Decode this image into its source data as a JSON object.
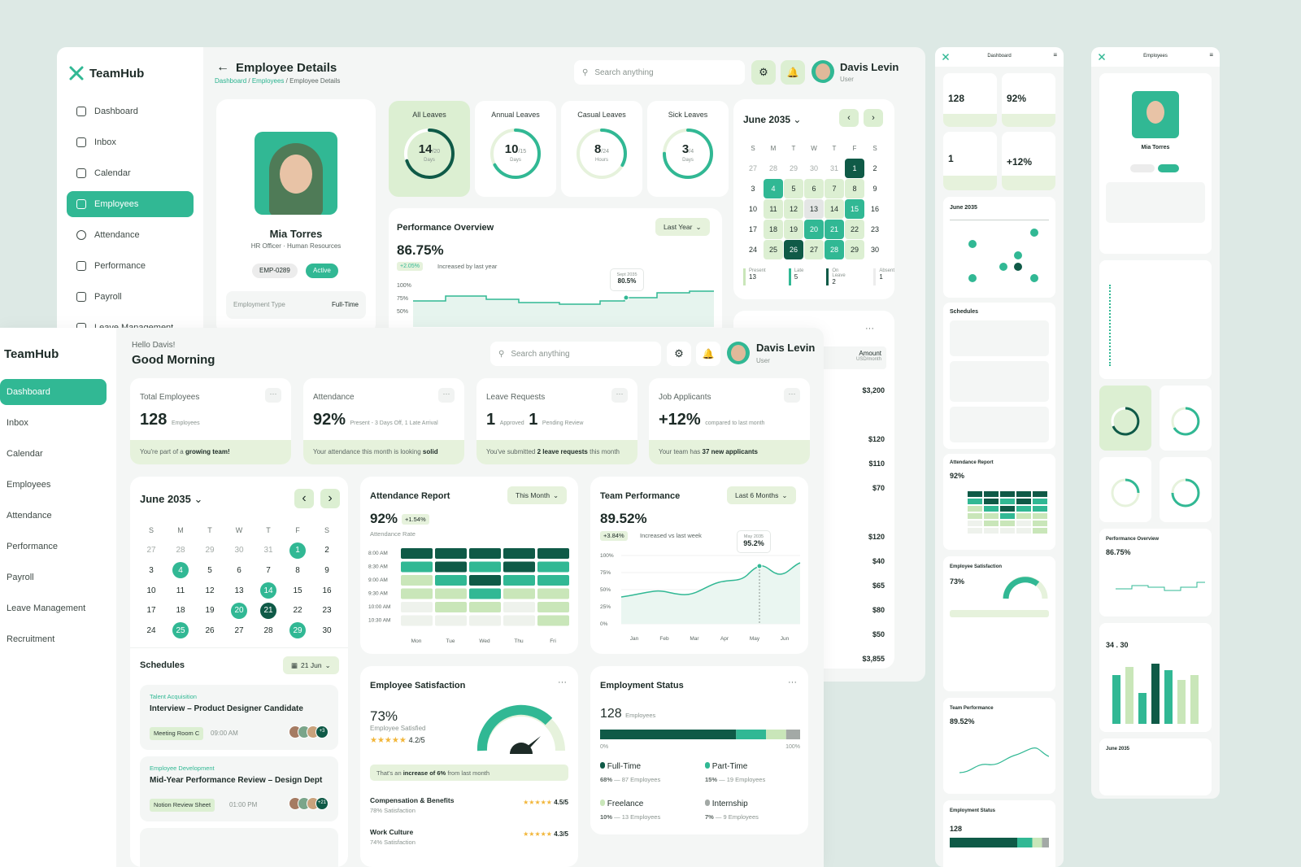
{
  "brand": {
    "name": "TeamHub",
    "accent": "#31b894",
    "dark": "#0f5a47",
    "light": "#dcefd2"
  },
  "back": {
    "nav": [
      "Dashboard",
      "Inbox",
      "Calendar",
      "Employees",
      "Attendance",
      "Performance",
      "Payroll",
      "Leave Management"
    ],
    "active_nav": "Employees",
    "title": "Employee Details",
    "breadcrumb": {
      "a": "Dashboard",
      "b": "Employees",
      "c": "Employee Details",
      "sep": "/"
    },
    "search_placeholder": "Search anything",
    "user": {
      "name": "Davis Levin",
      "role": "User"
    },
    "profile": {
      "name": "Mia Torres",
      "role": "HR Officer",
      "dept": "Human Resources",
      "id": "EMP-0289",
      "status": "Active",
      "emp_type_label": "Employment Type",
      "emp_type": "Full-Time"
    },
    "leaves": [
      {
        "title": "All Leaves",
        "num": "14",
        "den": "/20",
        "unit": "Days",
        "fraction": 0.7
      },
      {
        "title": "Annual Leaves",
        "num": "10",
        "den": "/15",
        "unit": "Days",
        "fraction": 0.67
      },
      {
        "title": "Casual Leaves",
        "num": "8",
        "den": "/24",
        "unit": "Hours",
        "fraction": 0.33
      },
      {
        "title": "Sick Leaves",
        "num": "3",
        "den": "/4",
        "unit": "Days",
        "fraction": 0.75
      }
    ],
    "performance": {
      "title": "Performance Overview",
      "filter": "Last Year",
      "value": "86.75%",
      "delta": "+2.05%",
      "delta_text": "Increased by last year",
      "tip_date": "Sept 2035",
      "tip_val": "80.5%",
      "yticks": [
        "100%",
        "75%",
        "50%"
      ]
    },
    "calendar": {
      "month": "June 2035",
      "days": [
        "S",
        "M",
        "T",
        "W",
        "T",
        "F",
        "S"
      ],
      "weeks": [
        [
          "27",
          "28",
          "29",
          "30",
          "31",
          "1",
          "2"
        ],
        [
          "3",
          "4",
          "5",
          "6",
          "7",
          "8",
          "9"
        ],
        [
          "10",
          "11",
          "12",
          "13",
          "14",
          "15",
          "16"
        ],
        [
          "17",
          "18",
          "19",
          "20",
          "21",
          "22",
          "23"
        ],
        [
          "24",
          "25",
          "26",
          "27",
          "28",
          "29",
          "30"
        ]
      ],
      "legend": [
        {
          "label": "Present",
          "value": "13"
        },
        {
          "label": "Late",
          "value": "5"
        },
        {
          "label": "On Leave",
          "value": "2"
        },
        {
          "label": "Absent",
          "value": "1"
        }
      ]
    },
    "payroll": {
      "col": "Amount",
      "col_sub": "USD/month",
      "amounts": [
        "$3,200",
        "$120",
        "$110",
        "$70",
        "$120",
        "$40",
        "$65",
        "$80",
        "$50",
        "$3,855"
      ]
    }
  },
  "front": {
    "nav": [
      "Dashboard",
      "Inbox",
      "Calendar",
      "Employees",
      "Attendance",
      "Performance",
      "Payroll",
      "Leave Management",
      "Recruitment"
    ],
    "greeting": "Hello Davis!",
    "headline": "Good Morning",
    "search_placeholder": "Search anything",
    "user": {
      "name": "Davis Levin",
      "role": "User"
    },
    "stats": [
      {
        "label": "Total Employees",
        "value": "128",
        "sub": "Employees",
        "foot_a": "You're part of a ",
        "foot_b": "growing team!",
        "foot_c": ""
      },
      {
        "label": "Attendance",
        "value": "92%",
        "sub": "Present  -  3 Days Off, 1 Late Arrival",
        "foot_a": "Your attendance this month is looking ",
        "foot_b": "solid",
        "foot_c": ""
      },
      {
        "label": "Leave Requests",
        "value": "1",
        "sub": "Approved",
        "value2": "1",
        "sub2": "Pending Review",
        "foot_a": "You've submitted ",
        "foot_b": "2 leave requests",
        "foot_c": " this month"
      },
      {
        "label": "Job Applicants",
        "value": "+12%",
        "sub": "compared to last month",
        "foot_a": "Your team has ",
        "foot_b": "37 new applicants",
        "foot_c": ""
      }
    ],
    "calendar": {
      "month": "June 2035",
      "days": [
        "S",
        "M",
        "T",
        "W",
        "T",
        "F",
        "S"
      ],
      "weeks": [
        [
          "27",
          "28",
          "29",
          "30",
          "31",
          "1",
          "2"
        ],
        [
          "3",
          "4",
          "5",
          "6",
          "7",
          "8",
          "9"
        ],
        [
          "10",
          "11",
          "12",
          "13",
          "14",
          "15",
          "16"
        ],
        [
          "17",
          "18",
          "19",
          "20",
          "21",
          "22",
          "23"
        ],
        [
          "24",
          "25",
          "26",
          "27",
          "28",
          "29",
          "30"
        ]
      ]
    },
    "schedules": {
      "title": "Schedules",
      "filter": "21 Jun",
      "items": [
        {
          "category": "Talent Acquisition",
          "title": "Interview – Product Designer Candidate",
          "tag": "Meeting Room C",
          "time": "09:00 AM",
          "more": "+3"
        },
        {
          "category": "Employee Development",
          "title": "Mid-Year Performance Review – Design Dept",
          "tag": "Notion Review Sheet",
          "time": "01:00 PM",
          "more": "+21"
        }
      ]
    },
    "attendance_report": {
      "title": "Attendance Report",
      "filter": "This Month",
      "value": "92%",
      "delta": "+1.54%",
      "sub": "Attendance Rate",
      "times": [
        "8:00 AM",
        "8:30 AM",
        "9:00 AM",
        "9:30 AM",
        "10:00 AM",
        "10:30 AM"
      ],
      "days": [
        "Mon",
        "Tue",
        "Wed",
        "Thu",
        "Fri"
      ]
    },
    "team_performance": {
      "title": "Team Performance",
      "filter": "Last 6 Months",
      "value": "89.52%",
      "delta": "+3.84%",
      "delta_text": "Increased vs last week",
      "tip_date": "May 2035",
      "tip_val": "95.2%",
      "yticks": [
        "100%",
        "75%",
        "50%",
        "25%",
        "0%"
      ],
      "months": [
        "Jan",
        "Feb",
        "Mar",
        "Apr",
        "May",
        "Jun"
      ]
    },
    "satisfaction": {
      "title": "Employee Satisfaction",
      "value": "73%",
      "sub": "Employee Satisfied",
      "rating": "4.2/5",
      "banner_a": "That's an ",
      "banner_b": "increase of 6%",
      "banner_c": " from last month",
      "items": [
        {
          "name": "Compensation & Benefits",
          "sub": "78% Satisfaction",
          "score": "4.5/5"
        },
        {
          "name": "Work Culture",
          "sub": "74% Satisfaction",
          "score": "4.3/5"
        }
      ]
    },
    "employment_status": {
      "title": "Employment Status",
      "total": "128",
      "total_sub": "Employees",
      "axis": [
        "0%",
        "100%"
      ],
      "items": [
        {
          "name": "Full-Time",
          "pct": "68%",
          "count": "87 Employees",
          "color": "#0f5a47"
        },
        {
          "name": "Part-Time",
          "pct": "15%",
          "count": "19 Employees",
          "color": "#31b894"
        },
        {
          "name": "Freelance",
          "pct": "10%",
          "count": "13 Employees",
          "color": "#c9e6b9"
        },
        {
          "name": "Internship",
          "pct": "7%",
          "count": "9 Employees",
          "color": "#a3a9a6"
        }
      ]
    }
  },
  "mobile_titles": {
    "a": "Dashboard",
    "b": "Employees"
  },
  "mobile": {
    "hours_logged": "34 . 30"
  }
}
